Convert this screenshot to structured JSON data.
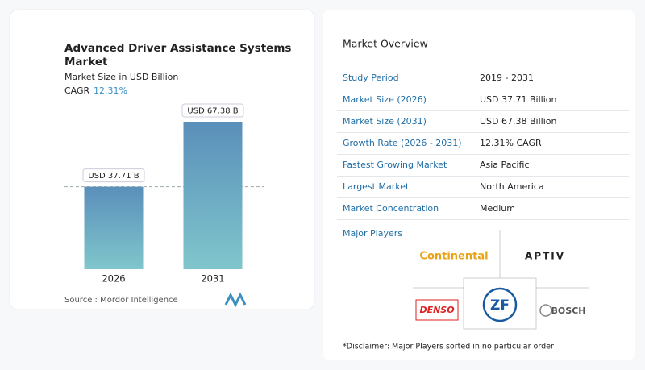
{
  "chart_data": {
    "type": "bar",
    "title": "Advanced Driver Assistance Systems Market",
    "subtitle": "Market Size in USD Billion",
    "cagr_label": "CAGR",
    "cagr": "12.31%",
    "categories": [
      "2026",
      "2031"
    ],
    "values": [
      37.71,
      67.38
    ],
    "value_labels": [
      "USD 37.71 B",
      "USD 67.38 B"
    ],
    "source": "Source :  Mordor Intelligence"
  },
  "overview": {
    "title": "Market Overview",
    "rows": [
      [
        "Study Period",
        "2019 - 2031"
      ],
      [
        "Market Size (2026)",
        "USD 37.71 Billion"
      ],
      [
        "Market Size (2031)",
        "USD 67.38 Billion"
      ],
      [
        "Growth Rate (2026 - 2031)",
        "12.31% CAGR"
      ],
      [
        "Fastest Growing Market",
        "Asia Pacific"
      ],
      [
        "Largest Market",
        "North America"
      ],
      [
        "Market Concentration",
        "Medium"
      ]
    ]
  },
  "major_players": {
    "title": "Major Players",
    "logos": [
      "Continental",
      "APTIV",
      "DENSO",
      "ZF",
      "BOSCH"
    ]
  },
  "disclaimer": "*Disclaimer: Major Players sorted in no particular order"
}
